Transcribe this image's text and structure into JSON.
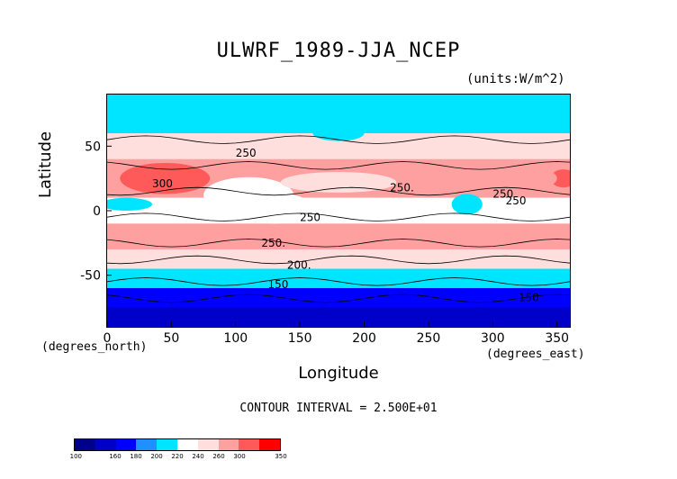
{
  "chart_data": {
    "type": "heatmap",
    "title": "ULWRF_1989-JJA_NCEP",
    "units": "(units:W/m^2)",
    "xlabel": "Longitude",
    "ylabel": "Latitude",
    "x_unit_label": "(degrees_east)",
    "y_unit_label": "(degrees_north)",
    "xlim": [
      0,
      360
    ],
    "ylim": [
      -90,
      90
    ],
    "x_ticks": [
      "0",
      "50",
      "100",
      "150",
      "200",
      "250",
      "300",
      "350"
    ],
    "y_ticks": [
      "50",
      "0",
      "-50"
    ],
    "contour_interval_text": "CONTOUR INTERVAL = 2.500E+01",
    "contour_labels": [
      "250",
      "250",
      "300",
      "250.",
      "250",
      "250",
      "250.",
      "200.",
      "150",
      "150"
    ],
    "colorbar": {
      "ticks": [
        "100",
        "160",
        "180",
        "200",
        "220",
        "240",
        "260",
        "300",
        "350"
      ],
      "colors": [
        "#00008b",
        "#0000c8",
        "#0000ff",
        "#1e90ff",
        "#00e5ff",
        "#ffffff",
        "#ffdede",
        "#ffa0a0",
        "#ff5a5a",
        "#ff0000"
      ]
    },
    "latitude_bands": [
      {
        "lat": [
          60,
          90
        ],
        "value": 210
      },
      {
        "lat": [
          40,
          60
        ],
        "value": 240
      },
      {
        "lat": [
          10,
          40
        ],
        "value": 265
      },
      {
        "lat": [
          -10,
          10
        ],
        "value": 235
      },
      {
        "lat": [
          -30,
          -10
        ],
        "value": 265
      },
      {
        "lat": [
          -45,
          -30
        ],
        "value": 245
      },
      {
        "lat": [
          -60,
          -45
        ],
        "value": 210
      },
      {
        "lat": [
          -75,
          -60
        ],
        "value": 170
      },
      {
        "lat": [
          -90,
          -75
        ],
        "value": 140
      }
    ]
  }
}
